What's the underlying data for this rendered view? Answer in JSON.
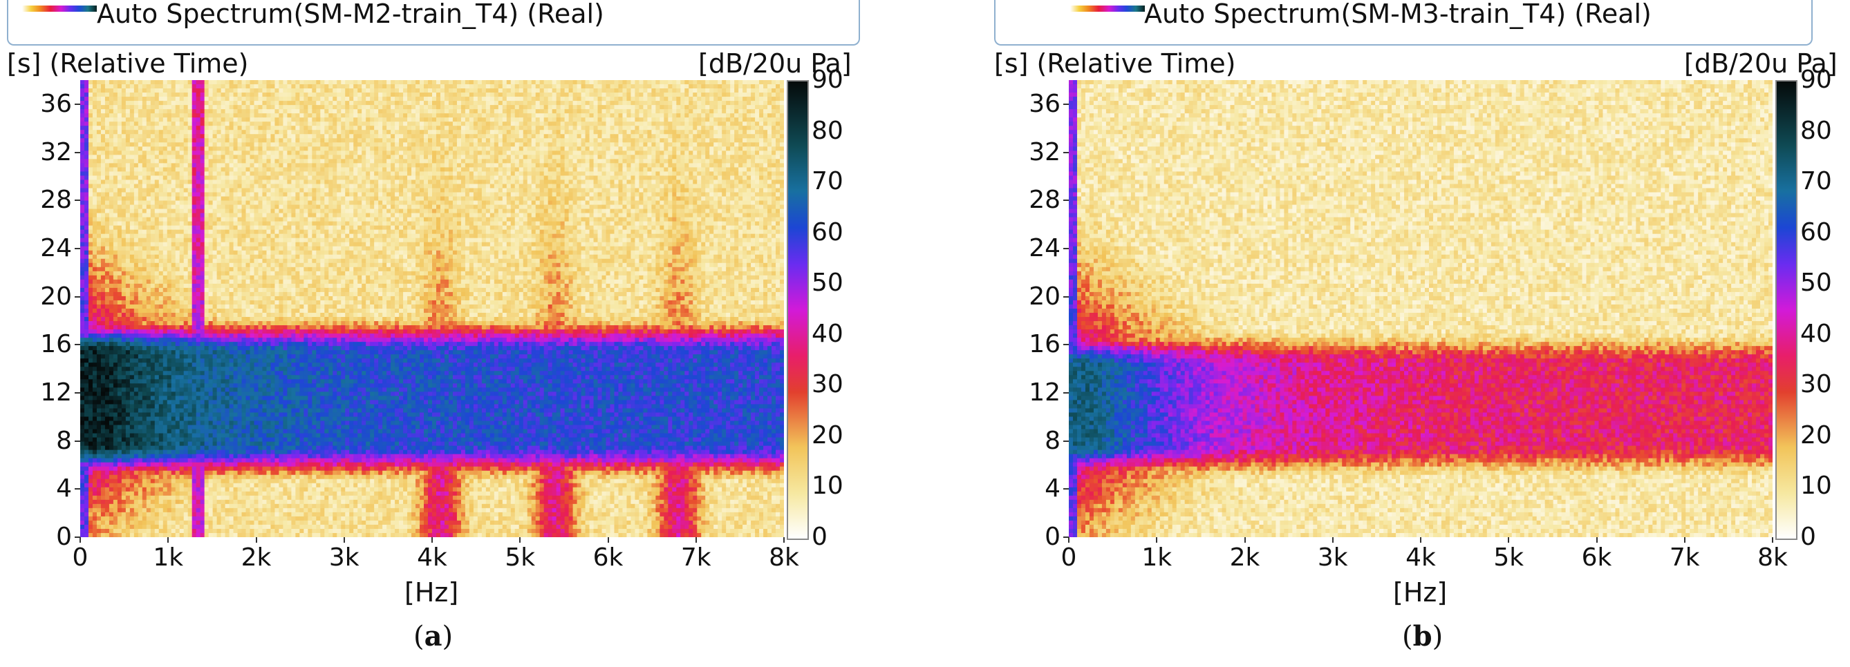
{
  "chart_data": [
    {
      "type": "heatmap",
      "title": "Auto Spectrum(SM-M2-train_T4) (Real)",
      "ylabel": "[s] (Relative Time)",
      "xlabel": "[Hz]",
      "colorbar_label": "[dB/20u Pa]",
      "caption": "(a)",
      "xlim": [
        0,
        8000
      ],
      "ylim": [
        0,
        38
      ],
      "clim": [
        0,
        90
      ],
      "x_ticks": [
        "0",
        "1k",
        "2k",
        "3k",
        "4k",
        "5k",
        "6k",
        "7k",
        "8k"
      ],
      "y_ticks": [
        "0",
        "4",
        "8",
        "12",
        "16",
        "20",
        "24",
        "28",
        "32",
        "36"
      ],
      "colorbar_ticks": [
        "0",
        "10",
        "20",
        "30",
        "40",
        "50",
        "60",
        "70",
        "80",
        "90"
      ],
      "features": {
        "peak_level_db": 85,
        "peak_time_s": [
          9,
          14
        ],
        "peak_freq_hz": [
          500,
          2000
        ],
        "band_level_high_freq_db": 60,
        "tonal_lines_hz": [
          1350
        ],
        "tonal_peaks_hz": [
          4100,
          5400,
          6800
        ],
        "background_db": 12
      }
    },
    {
      "type": "heatmap",
      "title": "Auto Spectrum(SM-M3-train_T4) (Real)",
      "ylabel": "[s] (Relative Time)",
      "xlabel": "[Hz]",
      "colorbar_label": "[dB/20u Pa]",
      "caption": "(b)",
      "xlim": [
        0,
        8000
      ],
      "ylim": [
        0,
        38
      ],
      "clim": [
        0,
        90
      ],
      "x_ticks": [
        "0",
        "1k",
        "2k",
        "3k",
        "4k",
        "5k",
        "6k",
        "7k",
        "8k"
      ],
      "y_ticks": [
        "0",
        "4",
        "8",
        "12",
        "16",
        "20",
        "24",
        "28",
        "32",
        "36"
      ],
      "colorbar_ticks": [
        "0",
        "10",
        "20",
        "30",
        "40",
        "50",
        "60",
        "70",
        "80",
        "90"
      ],
      "features": {
        "peak_level_db": 72,
        "peak_time_s": [
          9,
          13
        ],
        "peak_freq_hz": [
          0,
          1000
        ],
        "band_level_high_freq_db": 35,
        "tonal_lines_hz": [],
        "tonal_peaks_hz": [],
        "background_db": 10
      }
    }
  ]
}
